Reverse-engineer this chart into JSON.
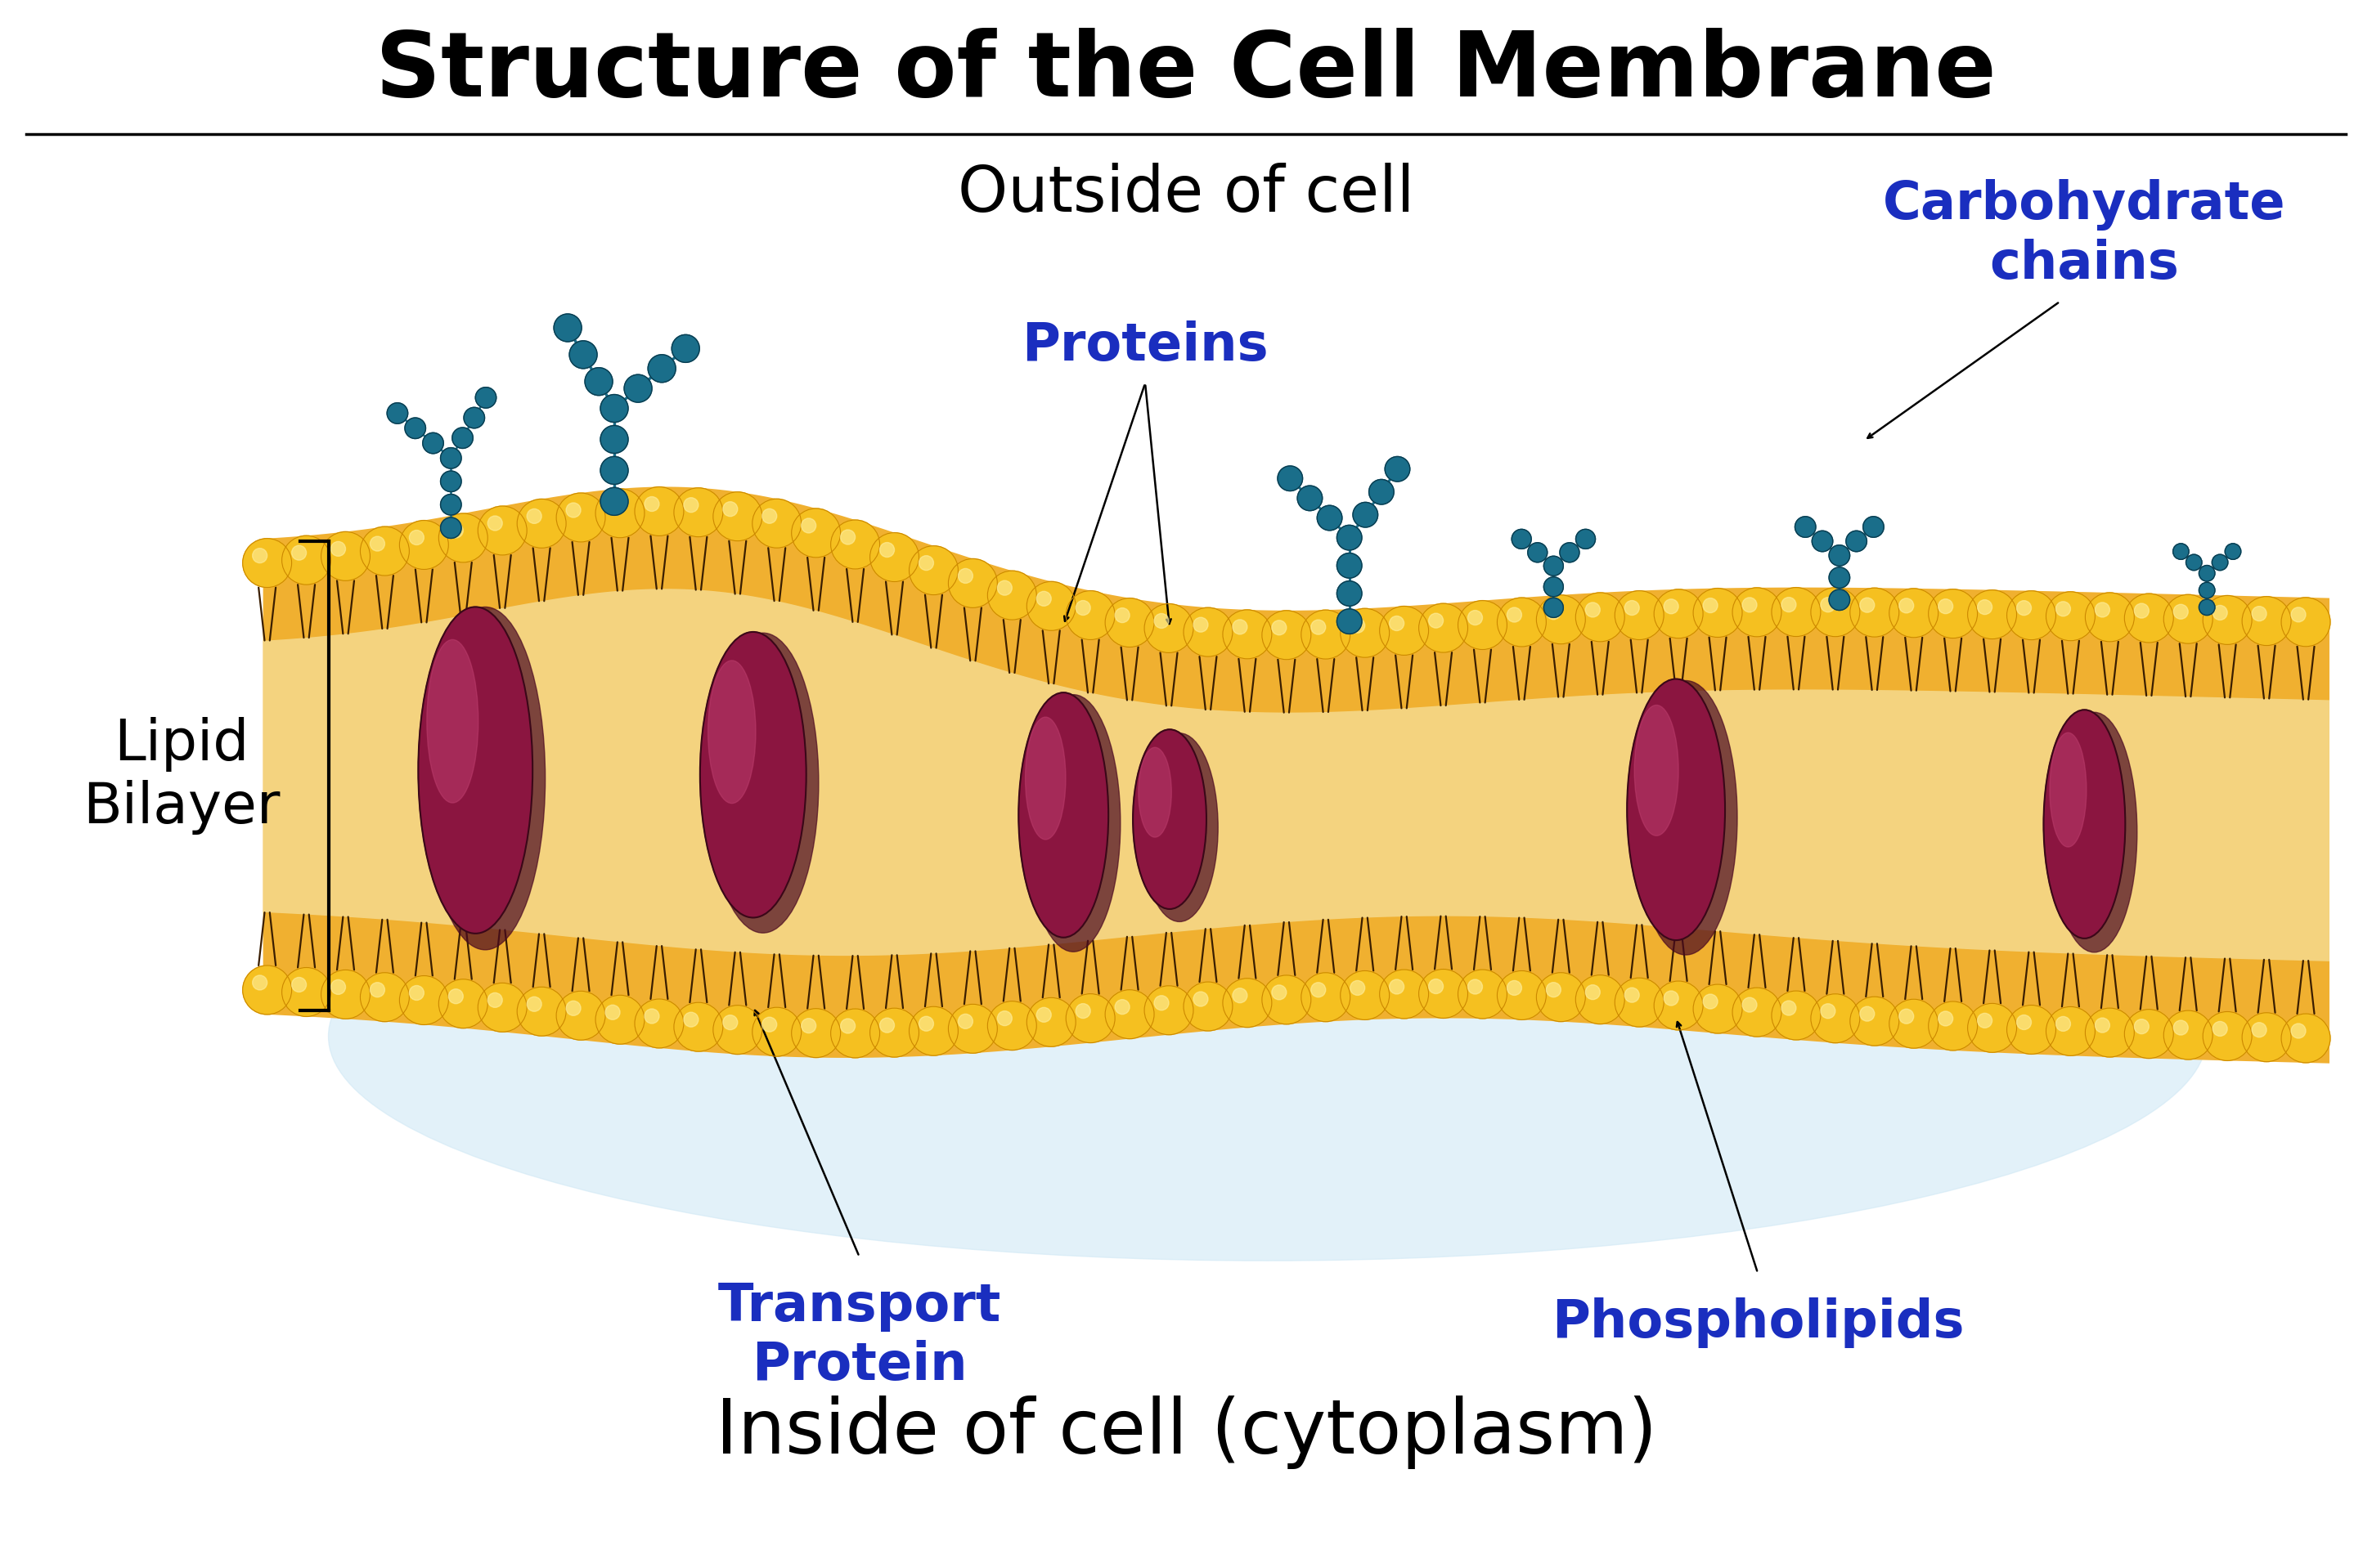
{
  "title": "Structure of the Cell Membrane",
  "title_fontsize": 80,
  "title_fontweight": "bold",
  "title_color": "#000000",
  "outside_label": "Outside of cell",
  "outside_fontsize": 56,
  "inside_label": "Inside of cell (cytoplasm)",
  "inside_fontsize": 66,
  "lipid_bilayer_label": "Lipid\nBilayer",
  "lipid_bilayer_fontsize": 50,
  "proteins_label": "Proteins",
  "proteins_fontsize": 46,
  "label_color": "#1a2ebf",
  "transport_label": "Transport\nProtein",
  "transport_fontsize": 46,
  "phospholipids_label": "Phospholipids",
  "phospholipids_fontsize": 46,
  "carbohydrate_label": "Carbohydrate\nchains",
  "carbohydrate_fontsize": 46,
  "bg_color": "#ffffff",
  "membrane_bg_color": "#f0b84a",
  "membrane_inner_color": "#f5d080",
  "phospholipid_head_color": "#f5c020",
  "phospholipid_head_outline": "#cc8800",
  "tail_color": "#3a1e00",
  "protein_color": "#8b1540",
  "protein_highlight": "#c04070",
  "protein_shadow": "#4a0820",
  "chain_color": "#1a6e8a",
  "chain_outline": "#0a3d50",
  "cytoplasm_color": "#d0e8f5",
  "separator_color": "#000000"
}
